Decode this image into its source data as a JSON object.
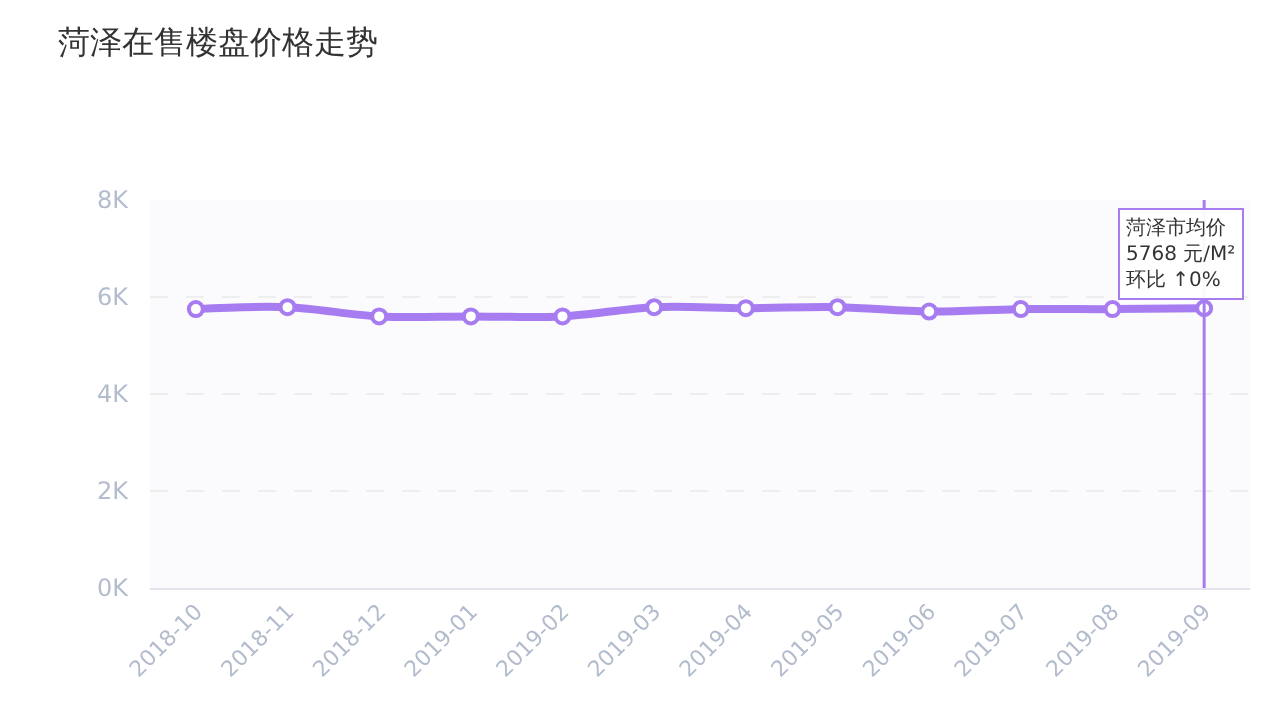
{
  "chart_data": {
    "type": "line",
    "title": "菏泽在售楼盘价格走势",
    "categories": [
      "2018-10",
      "2018-11",
      "2018-12",
      "2019-01",
      "2019-02",
      "2019-03",
      "2019-04",
      "2019-05",
      "2019-06",
      "2019-07",
      "2019-08",
      "2019-09"
    ],
    "series": [
      {
        "color": "#a77cf0",
        "values": [
          5750,
          5790,
          5600,
          5600,
          5600,
          5790,
          5770,
          5790,
          5700,
          5750,
          5750,
          5768
        ]
      }
    ],
    "ylim": [
      0,
      8000
    ],
    "yticks": [
      {
        "value": 0,
        "label": "0K"
      },
      {
        "value": 2000,
        "label": "2K"
      },
      {
        "value": 4000,
        "label": "4K"
      },
      {
        "value": 6000,
        "label": "6K"
      },
      {
        "value": 8000,
        "label": "8K"
      }
    ],
    "grid": "y",
    "marker": "circle",
    "line_style": "solid",
    "ref_lines": [
      {
        "axis": "x",
        "value": "2019-09",
        "color": "#a77cf0"
      }
    ],
    "annotations": [
      {
        "text": "菏泽市均价\n5768 元/M²\n环比 ↑0%",
        "x": "2019-09",
        "y": 5768
      }
    ]
  }
}
